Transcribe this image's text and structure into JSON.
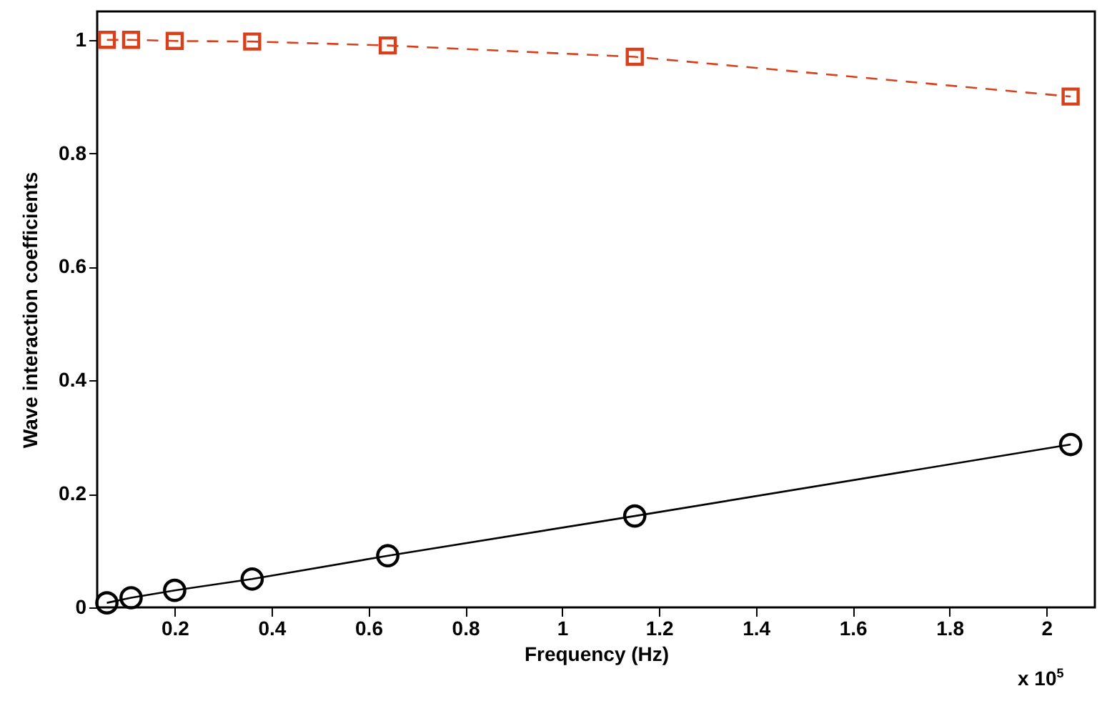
{
  "chart_data": {
    "type": "line",
    "xlabel": "Frequency (Hz)",
    "ylabel": "Wave interaction coefficients",
    "annotations": [
      "x 10$^{5}$"
    ],
    "xlim": [
      0.04,
      2.1
    ],
    "xticks": [
      0.2,
      0.4,
      0.6,
      0.8,
      1,
      1.2,
      1.4,
      1.6,
      1.8,
      2
    ],
    "ylim": [
      0,
      1.05
    ],
    "yticks": [
      0,
      0.2,
      0.4,
      0.6,
      0.8,
      1
    ],
    "series": [
      {
        "color": "#d8401c",
        "marker": "square",
        "line_style": "dashed",
        "x": [
          0.06,
          0.11,
          0.2,
          0.36,
          0.64,
          1.15,
          2.05
        ],
        "values": [
          1.0,
          1.0,
          0.998,
          0.997,
          0.99,
          0.97,
          0.9
        ]
      },
      {
        "color": "#000000",
        "marker": "circle",
        "line_style": "solid",
        "x": [
          0.06,
          0.11,
          0.2,
          0.36,
          0.64,
          1.15,
          2.05
        ],
        "values": [
          0.008,
          0.017,
          0.03,
          0.05,
          0.091,
          0.161,
          0.287
        ]
      }
    ]
  }
}
